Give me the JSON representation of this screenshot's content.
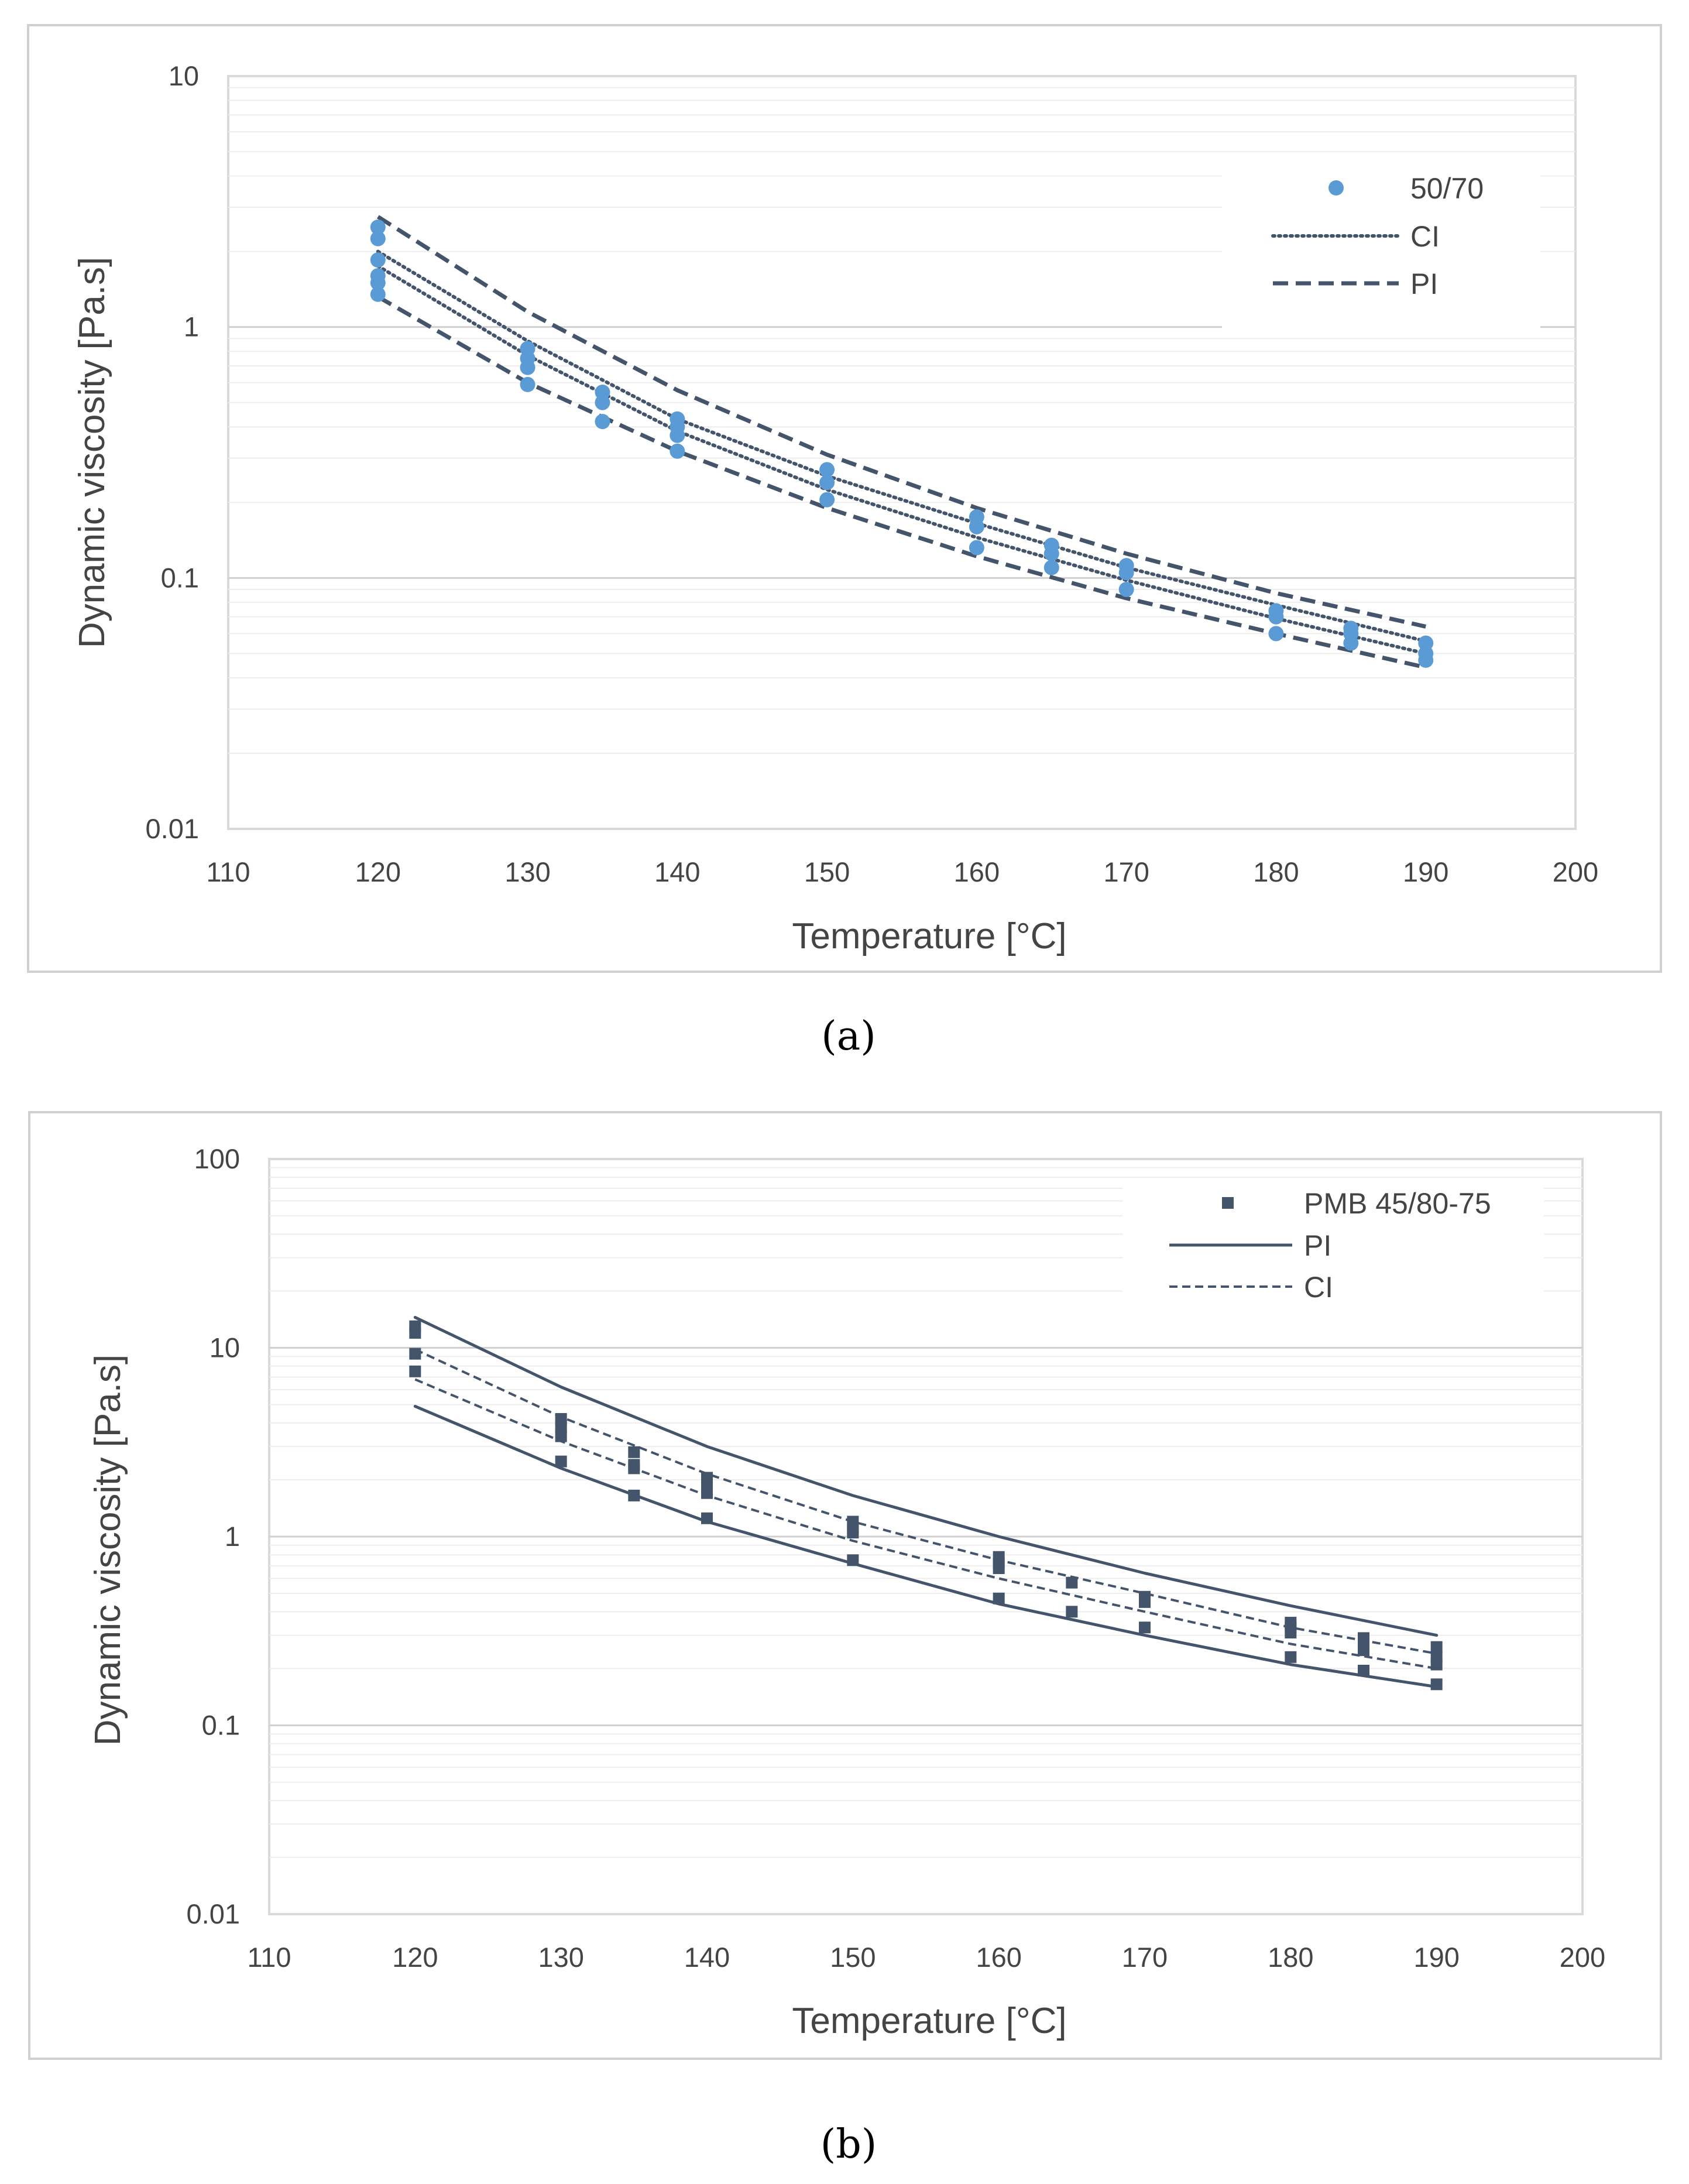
{
  "chart_data": [
    {
      "type": "scatter",
      "title": "",
      "caption": "(a)",
      "xlabel": "Temperature [°C]",
      "ylabel": "Dynamic viscosity [Pa.s]",
      "xlim": [
        110,
        200
      ],
      "ylim": [
        0.01,
        10
      ],
      "y_scale": "log",
      "x_ticks": [
        "110",
        "120",
        "130",
        "140",
        "150",
        "160",
        "170",
        "180",
        "190",
        "200"
      ],
      "y_ticks": [
        "0.01",
        "0.1",
        "1",
        "10"
      ],
      "grid": true,
      "legend_position": "top-right",
      "colors": {
        "points": "#5B9BD5",
        "lines": "#44546A"
      },
      "legend": [
        {
          "label": "50/70",
          "kind": "marker-circle"
        },
        {
          "label": "CI",
          "kind": "dotted"
        },
        {
          "label": "PI",
          "kind": "dashed"
        }
      ],
      "series": [
        {
          "name": "50/70",
          "kind": "scatter",
          "points": [
            [
              120,
              2.5
            ],
            [
              120,
              2.25
            ],
            [
              120,
              1.85
            ],
            [
              120,
              1.6
            ],
            [
              120,
              1.5
            ],
            [
              120,
              1.35
            ],
            [
              130,
              0.82
            ],
            [
              130,
              0.75
            ],
            [
              130,
              0.69
            ],
            [
              130,
              0.59
            ],
            [
              135,
              0.55
            ],
            [
              135,
              0.5
            ],
            [
              135,
              0.42
            ],
            [
              140,
              0.43
            ],
            [
              140,
              0.4
            ],
            [
              140,
              0.37
            ],
            [
              140,
              0.32
            ],
            [
              150,
              0.27
            ],
            [
              150,
              0.24
            ],
            [
              150,
              0.205
            ],
            [
              160,
              0.175
            ],
            [
              160,
              0.16
            ],
            [
              160,
              0.132
            ],
            [
              165,
              0.135
            ],
            [
              165,
              0.125
            ],
            [
              165,
              0.11
            ],
            [
              170,
              0.112
            ],
            [
              170,
              0.105
            ],
            [
              170,
              0.09
            ],
            [
              180,
              0.074
            ],
            [
              180,
              0.07
            ],
            [
              180,
              0.06
            ],
            [
              185,
              0.063
            ],
            [
              185,
              0.06
            ],
            [
              185,
              0.055
            ],
            [
              190,
              0.055
            ],
            [
              190,
              0.05
            ],
            [
              190,
              0.047
            ]
          ]
        },
        {
          "name": "CI",
          "kind": "dotted",
          "x": [
            120,
            130,
            140,
            150,
            160,
            170,
            180,
            190
          ],
          "values": [
            2.0,
            0.88,
            0.43,
            0.255,
            0.165,
            0.11,
            0.078,
            0.056
          ]
        },
        {
          "name": "CI",
          "kind": "dotted",
          "x": [
            120,
            130,
            140,
            150,
            160,
            170,
            180,
            190
          ],
          "values": [
            1.75,
            0.77,
            0.385,
            0.225,
            0.145,
            0.098,
            0.069,
            0.05
          ]
        },
        {
          "name": "PI",
          "kind": "dashed",
          "x": [
            120,
            130,
            140,
            150,
            160,
            170,
            180,
            190
          ],
          "values": [
            2.75,
            1.15,
            0.56,
            0.31,
            0.19,
            0.125,
            0.087,
            0.064
          ]
        },
        {
          "name": "PI",
          "kind": "dashed",
          "x": [
            120,
            130,
            140,
            150,
            160,
            170,
            180,
            190
          ],
          "values": [
            1.32,
            0.6,
            0.32,
            0.19,
            0.122,
            0.083,
            0.06,
            0.044
          ]
        }
      ]
    },
    {
      "type": "scatter",
      "title": "",
      "caption": "(b)",
      "xlabel": "Temperature [°C]",
      "ylabel": "Dynamic viscosity [Pa.s]",
      "xlim": [
        110,
        200
      ],
      "ylim": [
        0.01,
        100
      ],
      "y_scale": "log",
      "x_ticks": [
        "110",
        "120",
        "130",
        "140",
        "150",
        "160",
        "170",
        "180",
        "190",
        "200"
      ],
      "y_ticks": [
        "0.01",
        "0.1",
        "1",
        "10",
        "100"
      ],
      "grid": true,
      "legend_position": "top-right",
      "colors": {
        "points": "#44546A",
        "lines": "#44546A"
      },
      "legend": [
        {
          "label": "PMB 45/80-75",
          "kind": "marker-square"
        },
        {
          "label": "PI",
          "kind": "solid"
        },
        {
          "label": "CI",
          "kind": "dashed"
        }
      ],
      "series": [
        {
          "name": "PMB 45/80-75",
          "kind": "scatter",
          "points": [
            [
              120,
              13
            ],
            [
              120,
              12
            ],
            [
              120,
              9.3
            ],
            [
              120,
              7.5
            ],
            [
              130,
              4.2
            ],
            [
              130,
              3.8
            ],
            [
              130,
              3.4
            ],
            [
              130,
              2.5
            ],
            [
              135,
              2.8
            ],
            [
              135,
              2.4
            ],
            [
              135,
              2.3
            ],
            [
              135,
              1.65
            ],
            [
              140,
              2.05
            ],
            [
              140,
              1.85
            ],
            [
              140,
              1.7
            ],
            [
              140,
              1.25
            ],
            [
              150,
              1.2
            ],
            [
              150,
              1.1
            ],
            [
              150,
              1.05
            ],
            [
              150,
              0.75
            ],
            [
              160,
              0.78
            ],
            [
              160,
              0.72
            ],
            [
              160,
              0.68
            ],
            [
              160,
              0.47
            ],
            [
              165,
              0.57
            ],
            [
              165,
              0.4
            ],
            [
              170,
              0.48
            ],
            [
              170,
              0.45
            ],
            [
              170,
              0.33
            ],
            [
              180,
              0.35
            ],
            [
              180,
              0.33
            ],
            [
              180,
              0.31
            ],
            [
              180,
              0.23
            ],
            [
              185,
              0.29
            ],
            [
              185,
              0.27
            ],
            [
              185,
              0.25
            ],
            [
              185,
              0.195
            ],
            [
              190,
              0.26
            ],
            [
              190,
              0.23
            ],
            [
              190,
              0.21
            ],
            [
              190,
              0.165
            ]
          ]
        },
        {
          "name": "PI",
          "kind": "solid",
          "x": [
            120,
            130,
            140,
            150,
            160,
            170,
            180,
            190
          ],
          "values": [
            14.5,
            6.2,
            3.0,
            1.65,
            1.0,
            0.64,
            0.43,
            0.3
          ]
        },
        {
          "name": "PI",
          "kind": "solid",
          "x": [
            120,
            130,
            140,
            150,
            160,
            170,
            180,
            190
          ],
          "values": [
            4.9,
            2.3,
            1.2,
            0.72,
            0.44,
            0.3,
            0.21,
            0.16
          ]
        },
        {
          "name": "CI",
          "kind": "dashed",
          "x": [
            120,
            130,
            140,
            150,
            160,
            170,
            180,
            190
          ],
          "values": [
            9.8,
            4.3,
            2.15,
            1.2,
            0.75,
            0.5,
            0.33,
            0.24
          ]
        },
        {
          "name": "CI",
          "kind": "dashed",
          "x": [
            120,
            130,
            140,
            150,
            160,
            170,
            180,
            190
          ],
          "values": [
            6.8,
            3.2,
            1.65,
            0.95,
            0.6,
            0.4,
            0.27,
            0.2
          ]
        }
      ]
    }
  ]
}
